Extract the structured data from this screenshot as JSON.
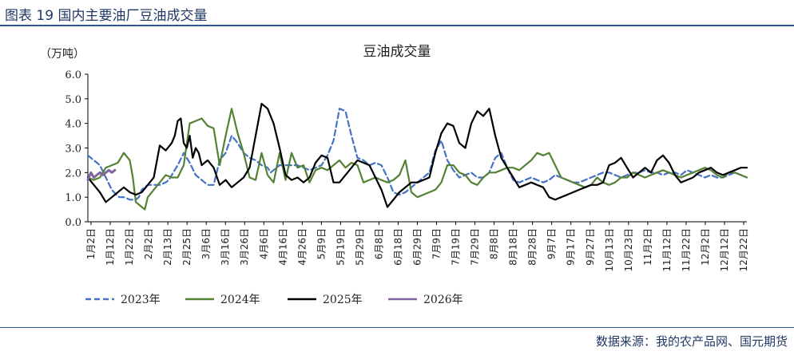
{
  "header": {
    "title": "图表 19 国内主要油厂豆油成交量"
  },
  "footer": {
    "source": "数据来源：我的农产品网、国元期货"
  },
  "chart_data": {
    "type": "line",
    "title": "豆油成交量",
    "ylabel": "（万吨）",
    "xlabel": "",
    "ylim": [
      0,
      6
    ],
    "yticks": [
      "0.0",
      "1.0",
      "2.0",
      "3.0",
      "4.0",
      "5.0",
      "6.0"
    ],
    "categories": [
      "1月2日",
      "1月12日",
      "1月22日",
      "2月2日",
      "2月13日",
      "2月25日",
      "3月6日",
      "3月16日",
      "3月26日",
      "4月6日",
      "4月16日",
      "4月26日",
      "5月9日",
      "5月19日",
      "5月29日",
      "6月8日",
      "6月18日",
      "6月29日",
      "7月9日",
      "7月19日",
      "7月29日",
      "8月8日",
      "8月18日",
      "8月28日",
      "9月7日",
      "9月17日",
      "9月27日",
      "10月13日",
      "10月23日",
      "11月2日",
      "11月12日",
      "11月22日",
      "12月2日",
      "12月12日",
      "12月22日"
    ],
    "legend_position": "bottom",
    "series": [
      {
        "name": "2023年",
        "color": "#4472C4",
        "dash": true,
        "x": [
          0,
          2,
          4,
          6,
          8,
          9.5,
          10.5,
          12,
          14,
          16,
          17,
          18,
          19,
          20,
          22,
          24,
          26,
          27,
          28,
          30,
          32,
          34,
          36,
          38,
          39,
          40,
          42,
          44,
          46,
          48,
          50,
          52,
          54,
          56,
          58,
          60,
          61,
          62,
          64,
          66,
          68,
          70,
          72,
          74,
          76,
          78,
          80,
          82,
          84,
          86,
          88,
          90,
          92,
          94,
          96,
          98,
          100,
          102,
          104,
          106,
          108,
          110,
          112,
          114,
          116,
          118,
          120,
          122,
          124,
          126,
          128,
          130,
          132,
          134,
          136,
          138,
          140,
          142,
          144,
          146,
          148,
          150,
          152,
          154,
          156,
          158,
          160,
          162,
          164,
          166,
          168,
          170,
          172,
          174,
          176,
          178,
          180,
          182,
          184,
          186,
          188,
          190,
          192,
          194,
          196,
          198,
          200,
          202,
          204,
          206,
          208,
          210,
          212,
          214,
          216,
          218,
          220
        ],
        "y": [
          2.7,
          2.5,
          2.3,
          1.8,
          1.3,
          1.1,
          1.0,
          1.0,
          0.9,
          0.9,
          1.0,
          1.3,
          1.4,
          1.5,
          1.5,
          1.5,
          1.6,
          1.7,
          1.9,
          2.3,
          2.8,
          2.4,
          1.9,
          1.7,
          1.6,
          1.5,
          1.5,
          2.5,
          2.8,
          3.5,
          3.2,
          2.8,
          2.6,
          2.5,
          2.3,
          2.2,
          2.0,
          2.1,
          2.3,
          2.3,
          2.3,
          2.3,
          2.2,
          2.1,
          2.2,
          2.3,
          2.7,
          3.3,
          4.6,
          4.5,
          3.5,
          2.6,
          2.5,
          2.3,
          2.4,
          2.3,
          1.8,
          1.2,
          1.1,
          1.2,
          1.4,
          1.6,
          1.8,
          2.0,
          2.9,
          3.3,
          2.5,
          2.1,
          1.8,
          1.9,
          2.0,
          1.8,
          1.8,
          2.0,
          2.6,
          2.8,
          2.2,
          1.7,
          1.6,
          1.7,
          1.8,
          1.7,
          1.6,
          1.7,
          1.9,
          1.8,
          1.7,
          1.6,
          1.6,
          1.7,
          1.8,
          1.9,
          2.0,
          2.0,
          1.9,
          1.8,
          1.9,
          2.0,
          2.0,
          2.1,
          2.0,
          2.0,
          1.9,
          2.0,
          2.0,
          1.9,
          2.1,
          2.0,
          1.9,
          1.8,
          1.9,
          1.8,
          1.8,
          1.9,
          2.0,
          1.9,
          1.8
        ]
      },
      {
        "name": "2024年",
        "color": "#548235",
        "dash": false,
        "x": [
          0,
          2,
          4,
          6,
          8,
          10,
          12,
          14,
          15,
          16,
          17,
          18,
          19,
          20,
          22,
          24,
          26,
          28,
          30,
          32,
          34,
          36,
          38,
          40,
          42,
          44,
          46,
          48,
          50,
          52,
          54,
          56,
          58,
          60,
          62,
          64,
          66,
          68,
          70,
          72,
          74,
          76,
          78,
          80,
          82,
          84,
          86,
          88,
          90,
          92,
          94,
          96,
          98,
          100,
          102,
          104,
          106,
          108,
          110,
          112,
          114,
          116,
          118,
          120,
          122,
          124,
          126,
          128,
          130,
          132,
          134,
          136,
          138,
          140,
          142,
          144,
          146,
          148,
          150,
          152,
          154,
          156,
          158,
          160,
          162,
          164,
          166,
          168,
          170,
          172,
          174,
          176,
          178,
          180,
          182,
          184,
          186,
          188,
          190,
          192,
          194,
          196,
          198,
          200,
          202,
          204,
          206,
          208,
          210,
          212,
          214,
          216,
          218,
          220
        ],
        "y": [
          1.8,
          1.7,
          1.8,
          2.2,
          2.3,
          2.4,
          2.8,
          2.5,
          1.8,
          0.8,
          0.7,
          0.6,
          0.5,
          1.0,
          1.3,
          1.6,
          1.9,
          1.8,
          1.8,
          2.3,
          4.0,
          4.1,
          4.2,
          3.9,
          3.8,
          2.3,
          3.5,
          4.6,
          3.6,
          2.8,
          1.8,
          1.7,
          2.8,
          1.9,
          1.6,
          2.8,
          1.7,
          2.8,
          2.2,
          2.3,
          1.6,
          2.1,
          2.2,
          2.1,
          2.3,
          2.5,
          2.2,
          2.4,
          2.3,
          1.6,
          1.7,
          1.8,
          1.7,
          1.6,
          1.7,
          1.9,
          2.5,
          1.2,
          1.0,
          1.1,
          1.2,
          1.3,
          1.6,
          2.3,
          2.3,
          2.0,
          1.9,
          1.6,
          1.5,
          1.8,
          2.0,
          2.0,
          2.1,
          2.2,
          2.2,
          2.1,
          2.3,
          2.5,
          2.8,
          2.7,
          2.8,
          2.3,
          1.8,
          1.7,
          1.6,
          1.5,
          1.4,
          1.5,
          1.8,
          1.6,
          1.5,
          1.6,
          1.8,
          1.8,
          2.0,
          1.9,
          1.8,
          1.9,
          2.0,
          2.1,
          2.0,
          1.9,
          1.8,
          1.9,
          2.0,
          2.1,
          2.2,
          2.1,
          1.9,
          1.8,
          2.0,
          2.0,
          1.9,
          1.8
        ]
      },
      {
        "name": "2025年",
        "color": "#000000",
        "dash": false,
        "x": [
          0,
          2,
          4,
          6,
          8,
          10,
          12,
          14,
          16,
          18,
          20,
          22,
          24,
          26,
          28,
          29,
          30,
          31,
          32,
          33,
          34,
          35,
          36,
          37,
          38,
          40,
          42,
          44,
          46,
          48,
          50,
          52,
          54,
          56,
          58,
          60,
          62,
          64,
          66,
          68,
          70,
          72,
          74,
          76,
          78,
          80,
          82,
          84,
          86,
          88,
          90,
          92,
          94,
          96,
          98,
          100,
          102,
          104,
          106,
          108,
          110,
          112,
          114,
          116,
          118,
          120,
          122,
          124,
          126,
          128,
          130,
          132,
          134,
          136,
          138,
          140,
          142,
          144,
          146,
          148,
          150,
          152,
          154,
          156,
          158,
          160,
          162,
          164,
          166,
          168,
          170,
          172,
          174,
          176,
          178,
          180,
          182,
          184,
          186,
          188,
          190,
          192,
          194,
          196,
          198,
          200,
          202,
          204,
          206,
          208,
          210,
          212,
          214,
          216,
          218,
          220
        ],
        "y": [
          1.8,
          1.5,
          1.2,
          0.8,
          1.0,
          1.2,
          1.4,
          1.2,
          1.1,
          1.2,
          1.5,
          1.8,
          3.1,
          2.9,
          3.2,
          3.5,
          4.1,
          4.2,
          3.2,
          3.0,
          3.5,
          2.6,
          3.0,
          2.8,
          2.3,
          2.5,
          2.2,
          1.5,
          1.7,
          1.4,
          1.6,
          1.8,
          2.2,
          3.5,
          4.8,
          4.6,
          4.0,
          3.0,
          1.9,
          1.7,
          1.8,
          1.6,
          1.8,
          2.4,
          2.7,
          2.6,
          1.6,
          1.6,
          1.9,
          2.2,
          2.5,
          2.4,
          2.3,
          1.8,
          1.3,
          0.6,
          0.9,
          1.2,
          1.4,
          1.6,
          1.6,
          1.7,
          1.8,
          2.8,
          3.6,
          4.0,
          3.9,
          3.2,
          3.0,
          4.0,
          4.5,
          4.3,
          4.6,
          3.5,
          2.6,
          2.2,
          1.8,
          1.4,
          1.5,
          1.6,
          1.5,
          1.4,
          1.0,
          0.9,
          1.0,
          1.1,
          1.2,
          1.3,
          1.4,
          1.5,
          1.5,
          1.6,
          2.3,
          2.4,
          2.6,
          2.2,
          1.8,
          2.0,
          2.2,
          2.0,
          2.5,
          2.7,
          2.4,
          1.9,
          1.6,
          1.7,
          1.8,
          2.0,
          2.1,
          2.2,
          2.0,
          1.9,
          2.0,
          2.1,
          2.2,
          2.2
        ]
      },
      {
        "name": "2026年",
        "color": "#8064A2",
        "dash": false,
        "x": [
          0,
          1,
          2,
          3,
          4,
          5,
          6,
          7,
          8,
          9
        ],
        "y": [
          1.7,
          2.0,
          1.8,
          1.9,
          2.0,
          1.9,
          2.0,
          2.1,
          2.0,
          2.1
        ]
      }
    ]
  }
}
